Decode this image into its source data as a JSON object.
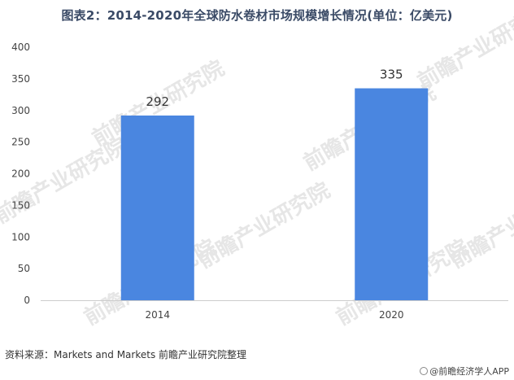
{
  "title": "图表2：2014-2020年全球防水卷材市场规模增长情况(单位：亿美元)",
  "source": "资料来源：Markets and Markets 前瞻产业研究院整理",
  "brand": "@前瞻经济学人APP",
  "watermark_text": "前瞻产业研究院",
  "colors": {
    "bar": "#4a86e0",
    "axis": "#cccccc",
    "title": "#3a4a66"
  },
  "chart_data": {
    "type": "bar",
    "title": "图表2：2014-2020年全球防水卷材市场规模增长情况(单位：亿美元)",
    "categories": [
      "2014",
      "2020"
    ],
    "values": [
      292,
      335
    ],
    "data_labels": [
      "292",
      "335"
    ],
    "y_ticks": [
      "0",
      "50",
      "100",
      "150",
      "200",
      "250",
      "300",
      "350",
      "400"
    ],
    "ylim": [
      0,
      400
    ],
    "xlabel": "",
    "ylabel": "",
    "grid": false,
    "legend": "none"
  }
}
